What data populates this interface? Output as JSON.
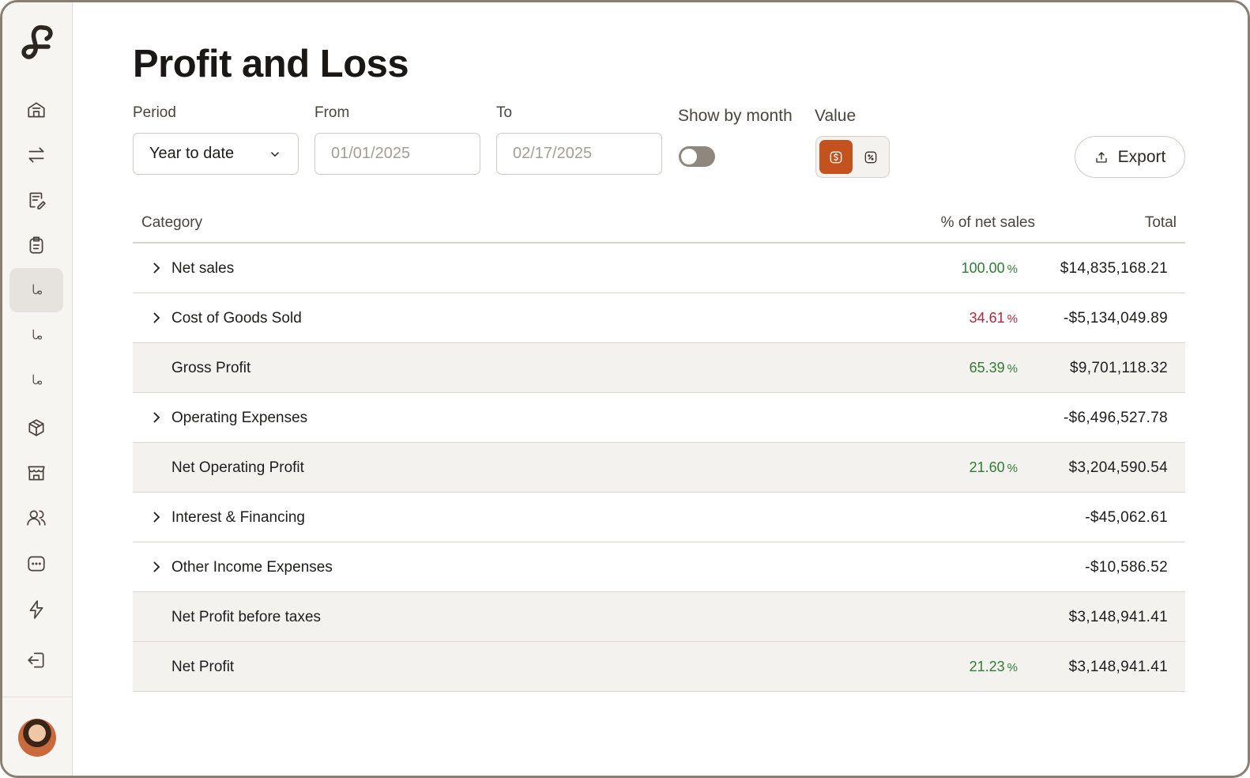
{
  "sidebar": {
    "items": [
      {
        "icon": "store-icon"
      },
      {
        "icon": "transfer-icon"
      },
      {
        "icon": "invoice-edit-icon"
      },
      {
        "icon": "clipboard-icon"
      },
      {
        "icon": "report-icon",
        "active": true
      },
      {
        "icon": "report-icon"
      },
      {
        "icon": "report-icon"
      },
      {
        "icon": "package-icon"
      },
      {
        "icon": "shop-icon"
      },
      {
        "icon": "users-icon"
      },
      {
        "icon": "more-icon"
      },
      {
        "icon": "lightning-icon"
      },
      {
        "icon": "logout-icon"
      }
    ]
  },
  "page": {
    "title": "Profit and Loss"
  },
  "filters": {
    "period_label": "Period",
    "period_value": "Year to date",
    "from_label": "From",
    "from_placeholder": "01/01/2025",
    "to_label": "To",
    "to_placeholder": "02/17/2025",
    "show_by_month_label": "Show by month",
    "show_by_month_on": false,
    "value_label": "Value",
    "value_mode": "dollar",
    "export_label": "Export"
  },
  "table": {
    "headers": {
      "category": "Category",
      "percent": "% of net sales",
      "total": "Total"
    },
    "rows": [
      {
        "category": "Net sales",
        "expandable": true,
        "shaded": false,
        "percent": "100.00",
        "percent_color": "#2e7d32",
        "total": "$14,835,168.21"
      },
      {
        "category": "Cost of Goods Sold",
        "expandable": true,
        "shaded": false,
        "percent": "34.61",
        "percent_color": "#b3263a",
        "total": "-$5,134,049.89"
      },
      {
        "category": "Gross Profit",
        "expandable": false,
        "shaded": true,
        "percent": "65.39",
        "percent_color": "#2e7d32",
        "total": "$9,701,118.32"
      },
      {
        "category": "Operating Expenses",
        "expandable": true,
        "shaded": false,
        "percent": "",
        "percent_color": "",
        "total": "-$6,496,527.78"
      },
      {
        "category": "Net Operating Profit",
        "expandable": false,
        "shaded": true,
        "percent": "21.60",
        "percent_color": "#2e7d32",
        "total": "$3,204,590.54"
      },
      {
        "category": "Interest & Financing",
        "expandable": true,
        "shaded": false,
        "percent": "",
        "percent_color": "",
        "total": "-$45,062.61"
      },
      {
        "category": "Other Income Expenses",
        "expandable": true,
        "shaded": false,
        "percent": "",
        "percent_color": "",
        "total": "-$10,586.52"
      },
      {
        "category": "Net Profit before taxes",
        "expandable": false,
        "shaded": true,
        "percent": "",
        "percent_color": "",
        "total": "$3,148,941.41"
      },
      {
        "category": "Net Profit",
        "expandable": false,
        "shaded": true,
        "percent": "21.23",
        "percent_color": "#2e7d32",
        "total": "$3,148,941.41"
      }
    ],
    "percent_sign": "%"
  },
  "colors": {
    "accent": "#c4521f",
    "positive": "#2e7d32",
    "negative": "#b3263a"
  }
}
